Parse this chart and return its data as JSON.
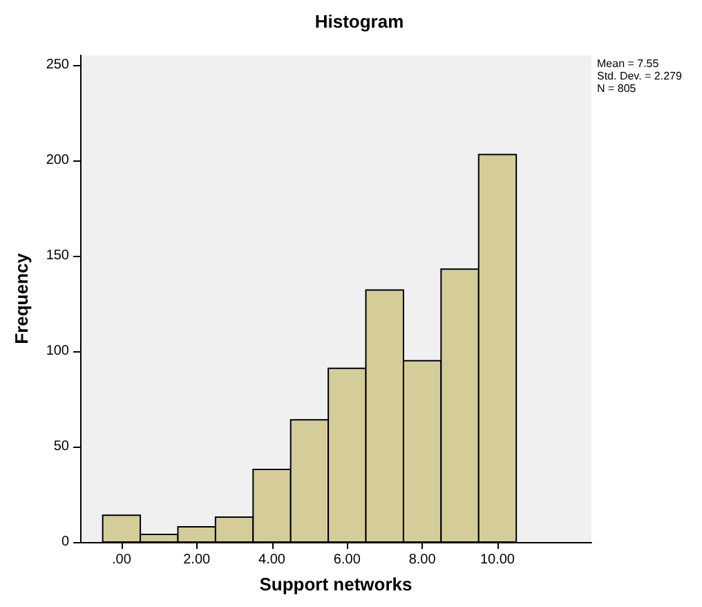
{
  "chart_data": {
    "type": "histogram",
    "title": "Histogram",
    "xlabel": "Support networks",
    "ylabel": "Frequency",
    "annotations": [
      "Mean = 7.55",
      "Std. Dev. = 2.279",
      "N = 805"
    ],
    "bins": [
      -0.5,
      0.5,
      1.5,
      2.5,
      3.5,
      4.5,
      5.5,
      6.5,
      7.5,
      8.5,
      9.5,
      10.5
    ],
    "values": [
      14,
      4,
      8,
      13,
      38,
      64,
      91,
      132,
      95,
      143,
      203
    ],
    "color": "#d4cd9a",
    "xlim": [
      -1.1,
      12.5
    ],
    "xticks": [
      {
        "value": 0,
        "label": ".00"
      },
      {
        "value": 2,
        "label": "2.00"
      },
      {
        "value": 4,
        "label": "4.00"
      },
      {
        "value": 6,
        "label": "6.00"
      },
      {
        "value": 8,
        "label": "8.00"
      },
      {
        "value": 10,
        "label": "10.00"
      }
    ],
    "ylim": [
      0,
      255
    ],
    "yticks": [
      0,
      50,
      100,
      150,
      200,
      250
    ]
  }
}
